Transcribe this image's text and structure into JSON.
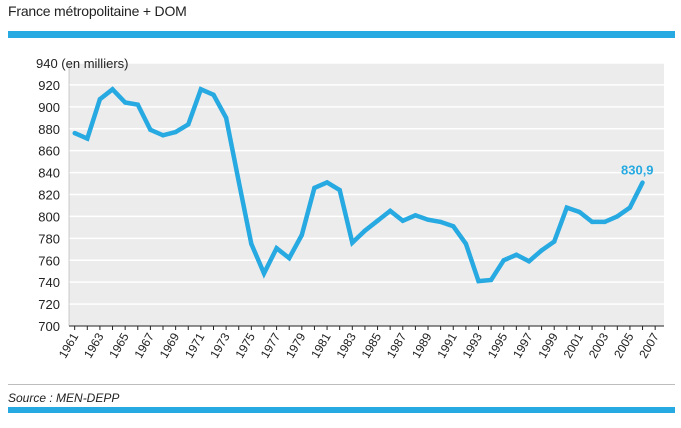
{
  "header": {
    "title": "France métropolitaine + DOM"
  },
  "footer": {
    "source": "Source : MEN-DEPP"
  },
  "colors": {
    "accent": "#27a9e1",
    "plot_bg": "#ececec",
    "grid": "#ffffff"
  },
  "chart_data": {
    "type": "line",
    "title": "France métropolitaine + DOM",
    "ylabel": "940 (en milliers)",
    "y_unit_label": "(en milliers)",
    "xlabel": "",
    "ylim": [
      700,
      940
    ],
    "yticks": [
      700,
      720,
      740,
      760,
      780,
      800,
      820,
      840,
      860,
      880,
      900,
      920,
      940
    ],
    "xtick_labels": [
      "1961",
      "1963",
      "1965",
      "1967",
      "1969",
      "1971",
      "1973",
      "1975",
      "1977",
      "1979",
      "1981",
      "1983",
      "1985",
      "1987",
      "1989",
      "1991",
      "1993",
      "1995",
      "1997",
      "1999",
      "2001",
      "2003",
      "2005",
      "2007"
    ],
    "grid": true,
    "series": [
      {
        "name": "France métropolitaine + DOM",
        "x": [
          1961,
          1962,
          1963,
          1964,
          1965,
          1966,
          1967,
          1968,
          1969,
          1970,
          1971,
          1972,
          1973,
          1974,
          1975,
          1976,
          1977,
          1978,
          1979,
          1980,
          1981,
          1982,
          1983,
          1984,
          1985,
          1986,
          1987,
          1988,
          1989,
          1990,
          1991,
          1992,
          1993,
          1994,
          1995,
          1996,
          1997,
          1998,
          1999,
          2000,
          2001,
          2002,
          2003,
          2004,
          2005,
          2006
        ],
        "values": [
          876,
          871,
          907,
          916,
          904,
          902,
          879,
          874,
          877,
          884,
          916,
          911,
          890,
          832,
          775,
          748,
          771,
          762,
          783,
          826,
          831,
          824,
          776,
          787,
          796,
          805,
          796,
          801,
          797,
          795,
          791,
          775,
          741,
          742,
          760,
          765,
          759,
          769,
          777,
          808,
          804,
          795,
          795,
          800,
          808,
          830.9
        ]
      }
    ],
    "annotations": [
      {
        "x": 2006,
        "label": "830,9"
      }
    ]
  }
}
